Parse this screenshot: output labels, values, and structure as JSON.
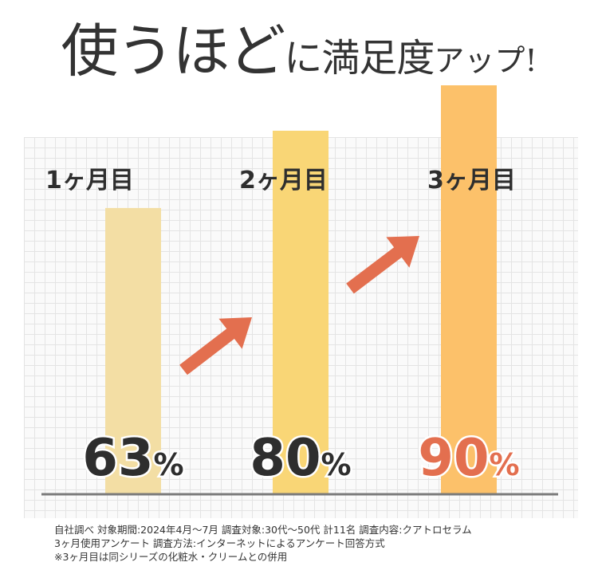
{
  "headline": {
    "part1": "使うほど",
    "part2": "に満足度",
    "part3": "アップ!"
  },
  "chart_data": {
    "type": "bar",
    "categories": [
      "1ヶ月目",
      "2ヶ月目",
      "3ヶ月目"
    ],
    "values": [
      63,
      80,
      90
    ],
    "value_labels": [
      "63",
      "80",
      "90"
    ],
    "unit": "%",
    "ylim": [
      0,
      100
    ],
    "grid": true,
    "colors": {
      "bars": [
        "#f3dea4",
        "#f9d676",
        "#fcc16a"
      ],
      "value_text": [
        "#2e2e2e",
        "#2e2e2e",
        "#e36f4f"
      ],
      "arrow": "#e36f4f",
      "baseline": "#7a7a7a"
    }
  },
  "footnote": {
    "line1": "自社調べ 対象期間:2024年4月〜7月 調査対象:30代〜50代 計11名 調査内容:クアトロセラム",
    "line2": "3ヶ月使用アンケート 調査方法:インターネットによるアンケート回答方式",
    "line3": "※3ヶ月目は同シリーズの化粧水・クリームとの併用"
  }
}
